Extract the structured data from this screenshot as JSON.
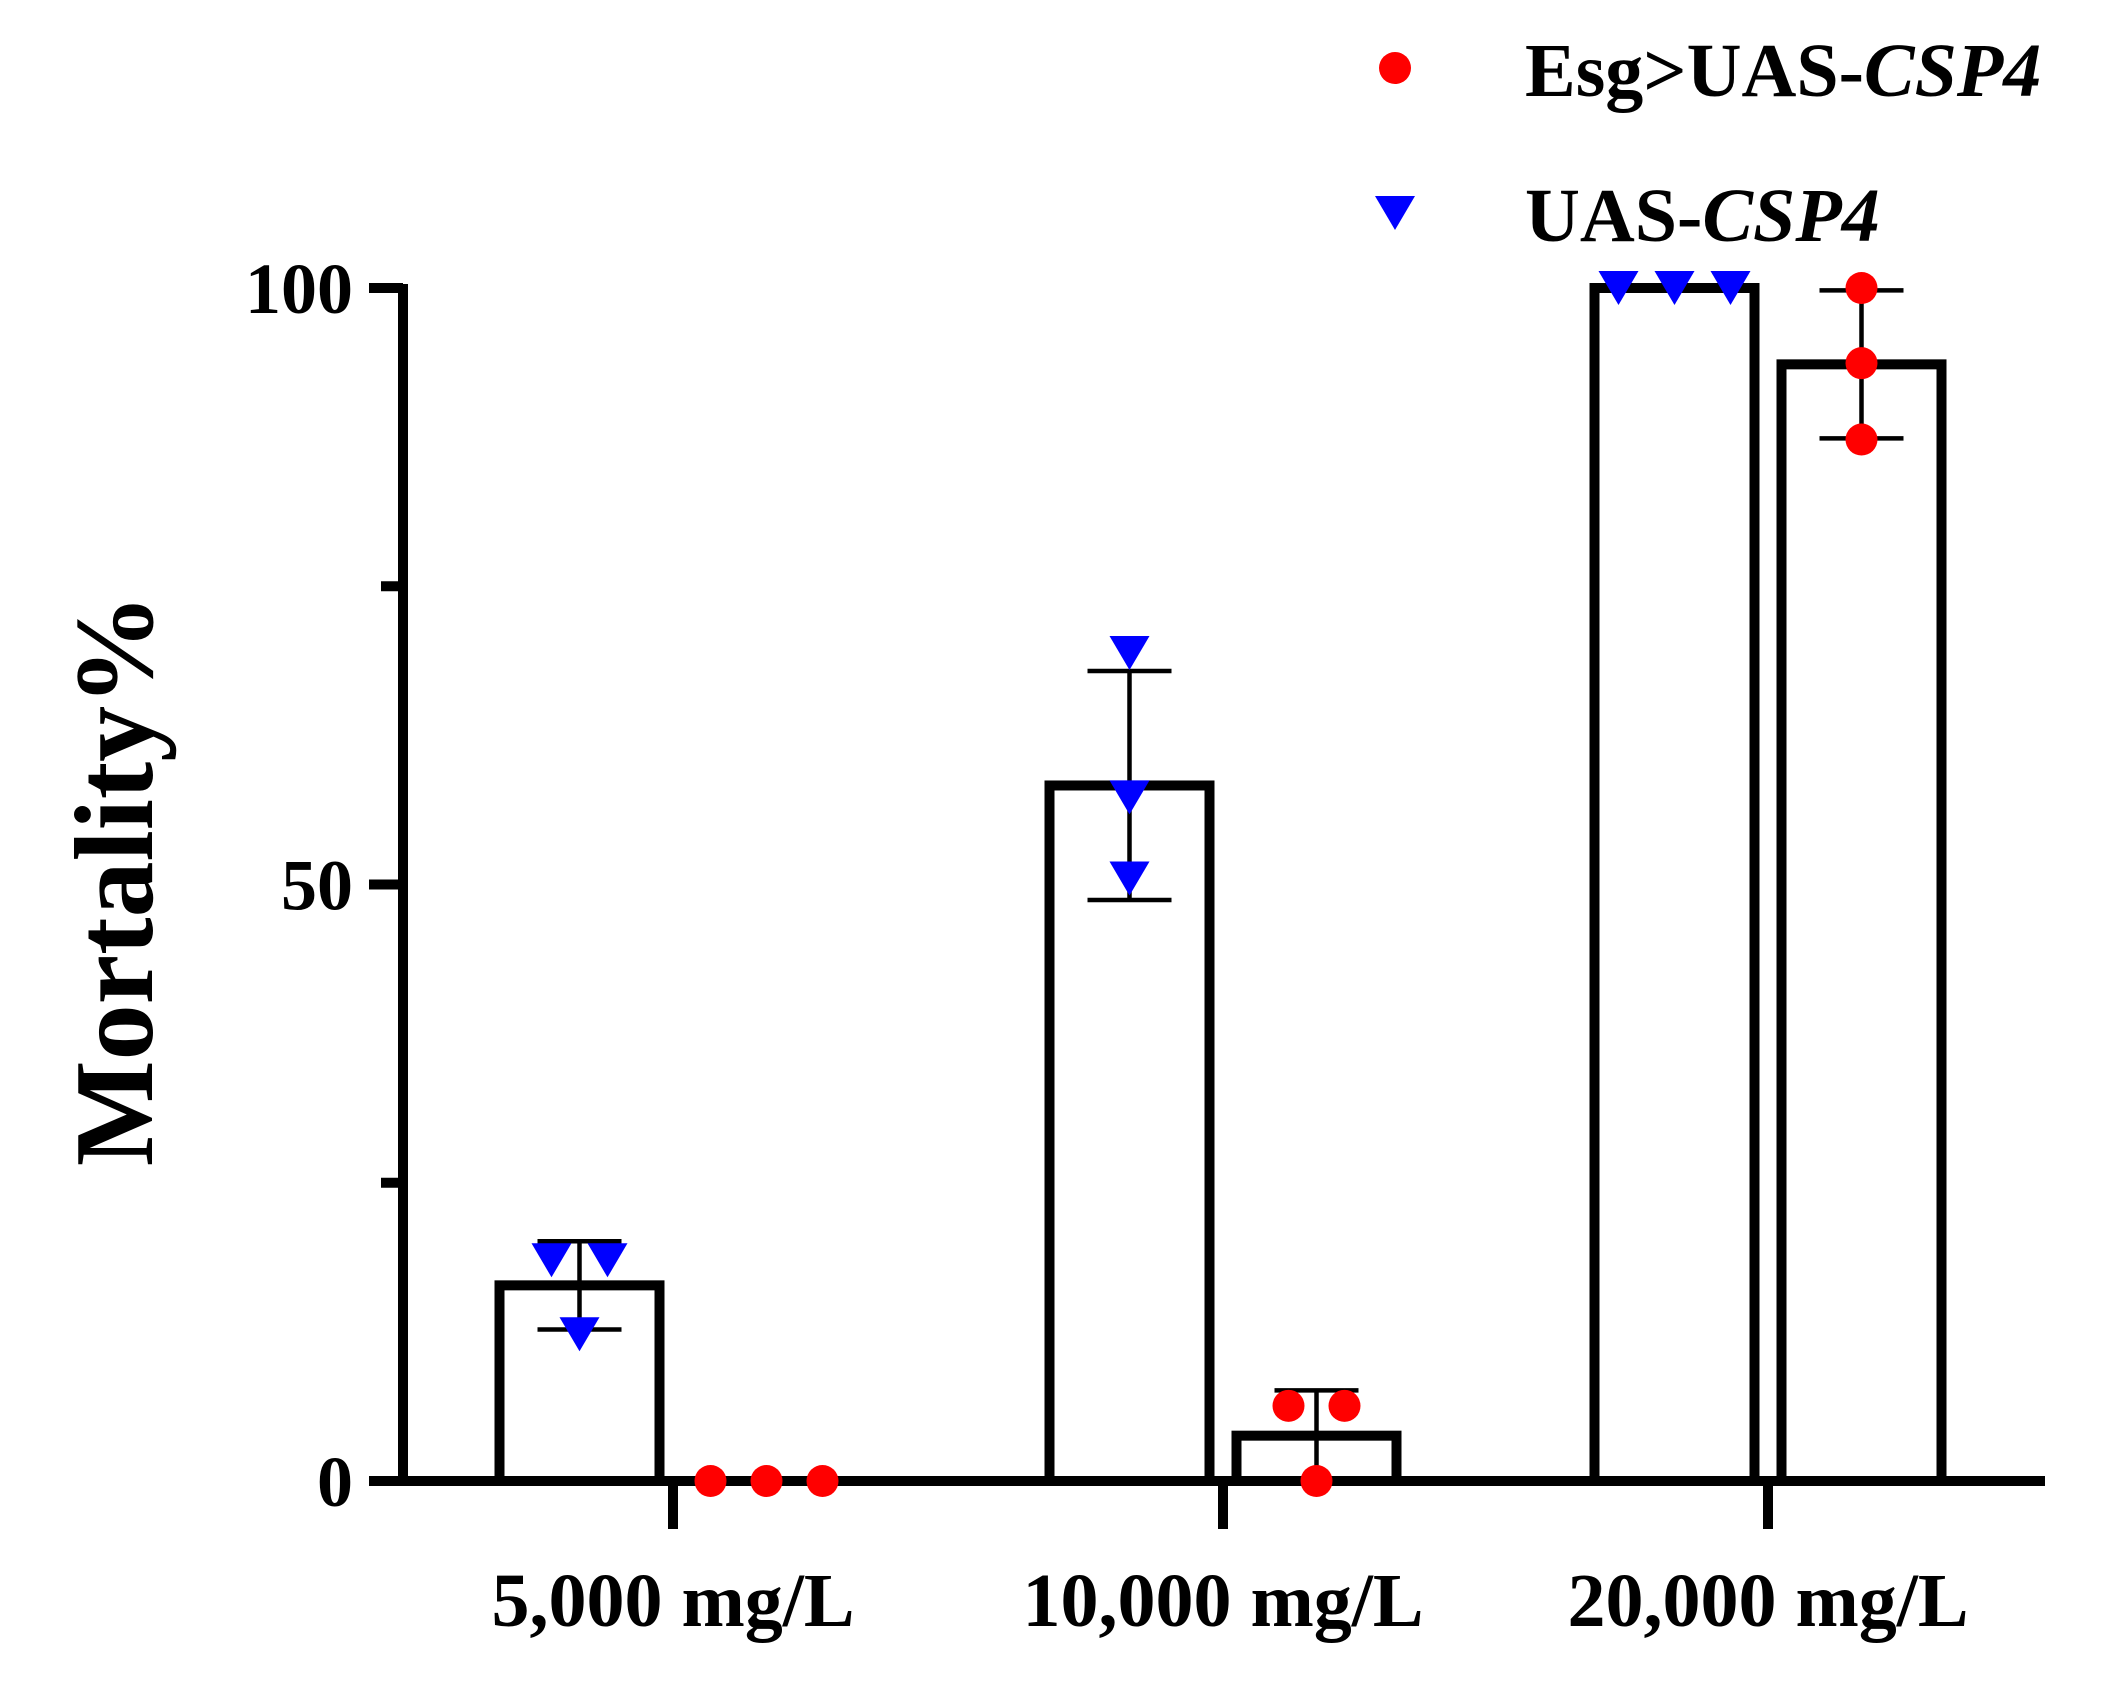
{
  "chart_data": {
    "type": "bar",
    "title": "",
    "xlabel": "",
    "ylabel": "Mortality%",
    "ylim": [
      0,
      100
    ],
    "yticks_major": [
      0,
      50,
      100
    ],
    "yticks_minor": [
      25,
      75
    ],
    "categories": [
      "5,000 mg/L",
      "10,000 mg/L",
      "20,000 mg/L"
    ],
    "legend": {
      "position": "top-right"
    },
    "series": [
      {
        "name": "UAS-CSP4",
        "name_parts": {
          "prefix": "UAS-",
          "italic": "CSP4"
        },
        "marker": "triangle-down",
        "color": "#0000ff",
        "values": [
          16.4,
          58.3,
          100
        ],
        "error": [
          3.7,
          9.6,
          0
        ],
        "points": [
          [
            18.5,
            18.5,
            12.3
          ],
          [
            50.5,
            57.3,
            69.4
          ],
          [
            100,
            100,
            100
          ]
        ]
      },
      {
        "name": "Esg>UAS-CSP4",
        "name_parts": {
          "prefix": "Esg>UAS-",
          "italic": "CSP4"
        },
        "marker": "circle",
        "color": "#ff0000",
        "values": [
          0,
          3.8,
          93.6
        ],
        "error": [
          0,
          3.8,
          6.2
        ],
        "points": [
          [
            0,
            0,
            0
          ],
          [
            6.3,
            6.3,
            0
          ],
          [
            100,
            93.7,
            87.3
          ]
        ]
      }
    ]
  }
}
